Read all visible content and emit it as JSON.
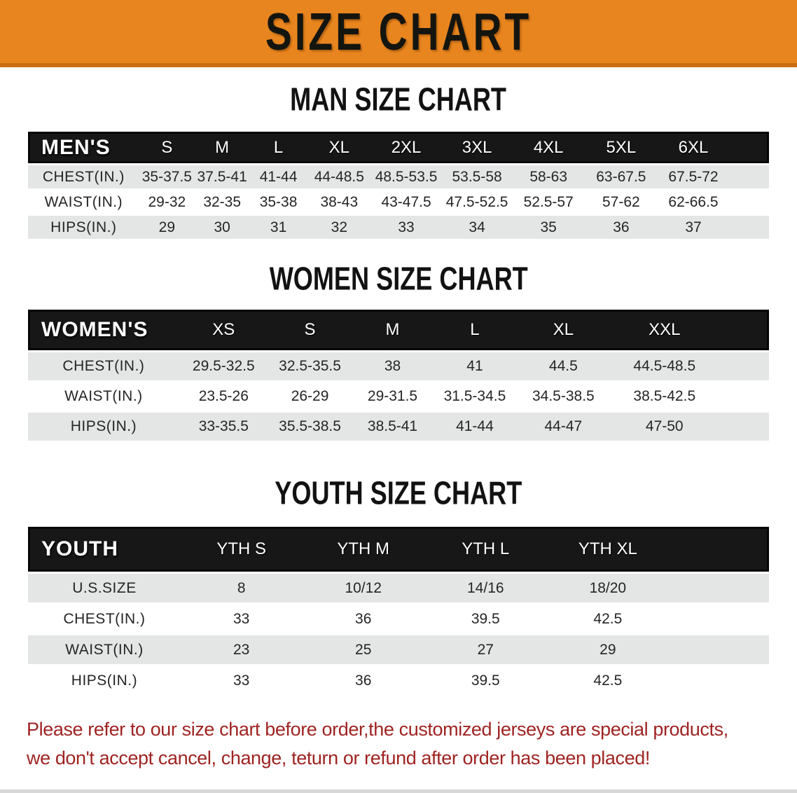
{
  "banner": {
    "title": "SIZE CHART",
    "bg_color": "#E8851F",
    "border_color": "#C96F12",
    "text_color": "#151510"
  },
  "tables": {
    "mens": {
      "heading": "MAN SIZE CHART",
      "corner": "MEN'S",
      "sizes": [
        "S",
        "M",
        "L",
        "XL",
        "2XL",
        "3XL",
        "4XL",
        "5XL",
        "6XL"
      ],
      "rows": [
        {
          "label": "CHEST(IN.)",
          "values": [
            "35-37.5",
            "37.5-41",
            "41-44",
            "44-48.5",
            "48.5-53.5",
            "53.5-58",
            "58-63",
            "63-67.5",
            "67.5-72"
          ]
        },
        {
          "label": "WAIST(IN.)",
          "values": [
            "29-32",
            "32-35",
            "35-38",
            "38-43",
            "43-47.5",
            "47.5-52.5",
            "52.5-57",
            "57-62",
            "62-66.5"
          ]
        },
        {
          "label": "HIPS(IN.)",
          "values": [
            "29",
            "30",
            "31",
            "32",
            "33",
            "34",
            "35",
            "36",
            "37"
          ]
        }
      ]
    },
    "womens": {
      "heading": "WOMEN SIZE CHART",
      "corner": "WOMEN'S",
      "sizes": [
        "XS",
        "S",
        "M",
        "L",
        "XL",
        "XXL"
      ],
      "rows": [
        {
          "label": "CHEST(IN.)",
          "values": [
            "29.5-32.5",
            "32.5-35.5",
            "38",
            "41",
            "44.5",
            "44.5-48.5"
          ]
        },
        {
          "label": "WAIST(IN.)",
          "values": [
            "23.5-26",
            "26-29",
            "29-31.5",
            "31.5-34.5",
            "34.5-38.5",
            "38.5-42.5"
          ]
        },
        {
          "label": "HIPS(IN.)",
          "values": [
            "33-35.5",
            "35.5-38.5",
            "38.5-41",
            "41-44",
            "44-47",
            "47-50"
          ]
        }
      ]
    },
    "youth": {
      "heading": "YOUTH SIZE CHART",
      "corner": "YOUTH",
      "sizes": [
        "YTH S",
        "YTH M",
        "YTH L",
        "YTH XL"
      ],
      "rows": [
        {
          "label": "U.S.SIZE",
          "values": [
            "8",
            "10/12",
            "14/16",
            "18/20"
          ]
        },
        {
          "label": "CHEST(IN.)",
          "values": [
            "33",
            "36",
            "39.5",
            "42.5"
          ]
        },
        {
          "label": "WAIST(IN.)",
          "values": [
            "23",
            "25",
            "27",
            "29"
          ]
        },
        {
          "label": "HIPS(IN.)",
          "values": [
            "33",
            "36",
            "39.5",
            "42.5"
          ]
        }
      ]
    }
  },
  "disclaimer": {
    "line1": "Please refer to our size chart before order,the customized jerseys are special products,",
    "line2": "we don't accept cancel, change, teturn or refund after order has been placed!",
    "color": "#9E2422"
  },
  "colors": {
    "header_bar": "#171717",
    "row_gray": "#E4E6E5",
    "row_white": "#FFFFFF"
  }
}
